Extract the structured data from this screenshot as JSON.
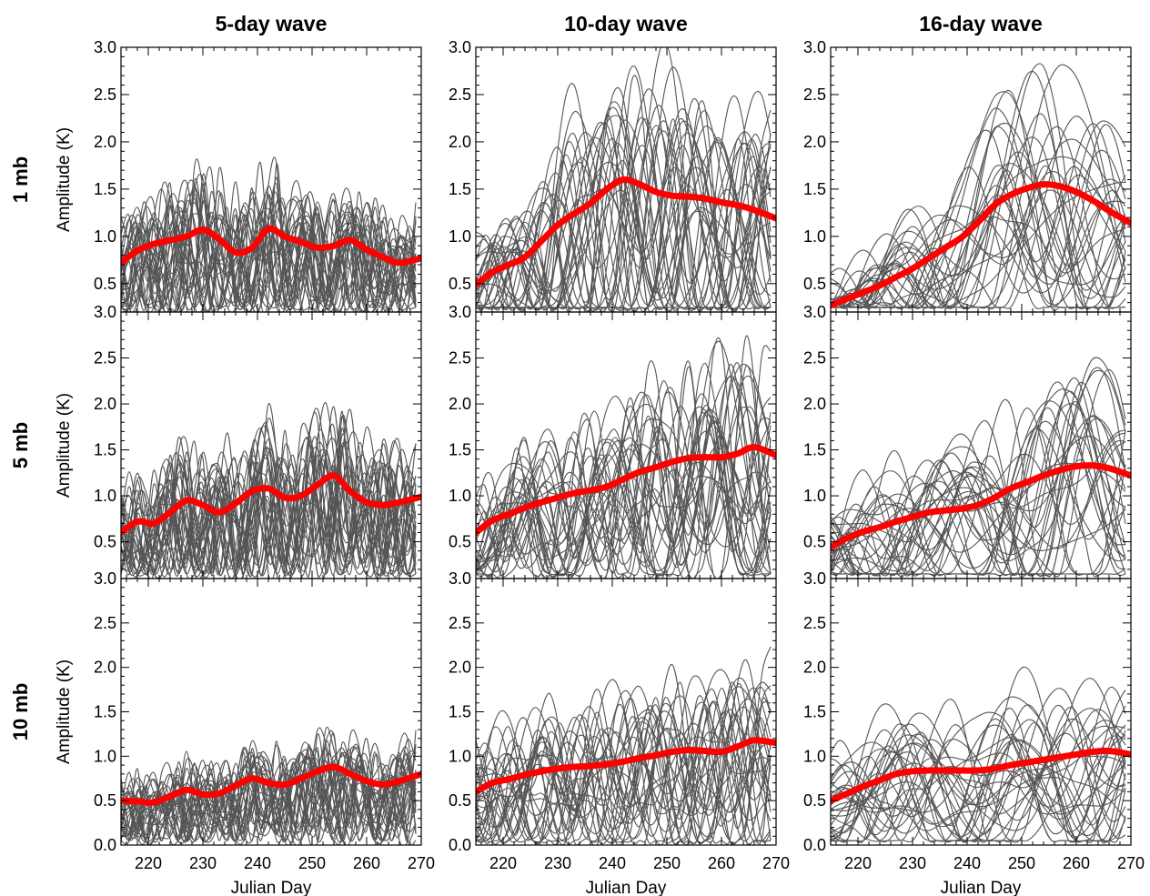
{
  "figure": {
    "column_titles": [
      "5-day wave",
      "10-day wave",
      "16-day wave"
    ],
    "row_labels": [
      "1 mb",
      "5 mb",
      "10 mb"
    ],
    "ylabel": "Amplitude (K)",
    "xlabel": "Julian Day",
    "mean_color": "#ff0000",
    "member_color": "#555555"
  },
  "chart_data": {
    "type": "line",
    "layout": "3x3 panel grid (rows: pressure level, columns: wave period)",
    "x_range": [
      215,
      270
    ],
    "x_ticks": [
      220,
      230,
      240,
      250,
      260,
      270
    ],
    "ylim": [
      0,
      3
    ],
    "y_ticks_top_row": [
      "0.5",
      "1.0",
      "1.5",
      "2.0",
      "2.5",
      "3.0"
    ],
    "y_ticks_other_rows": [
      "0.5",
      "1.0",
      "1.5",
      "2.0",
      "2.5",
      "3.0"
    ],
    "y_ticks_bottom_row": [
      "0.0",
      "0.5",
      "1.0",
      "1.5",
      "2.0",
      "2.5",
      "3.0"
    ],
    "ylim_top_row": [
      0.2,
      3.0
    ],
    "ylim_middle_row": [
      0.1,
      3.0
    ],
    "ylim_bottom_row": [
      0.0,
      3.0
    ],
    "grid": false,
    "mean_x": [
      215,
      218,
      221,
      224,
      227,
      230,
      233,
      236,
      239,
      242,
      245,
      248,
      251,
      254,
      257,
      260,
      263,
      266,
      270
    ],
    "panels": [
      {
        "row": "1 mb",
        "column": "5-day wave",
        "ensemble_members": 30,
        "mean": [
          0.72,
          0.85,
          0.92,
          0.96,
          1.0,
          1.07,
          0.97,
          0.83,
          0.88,
          1.08,
          1.0,
          0.94,
          0.88,
          0.9,
          0.96,
          0.86,
          0.78,
          0.72,
          0.77
        ]
      },
      {
        "row": "1 mb",
        "column": "10-day wave",
        "ensemble_members": 30,
        "mean": [
          0.49,
          0.62,
          0.7,
          0.78,
          0.95,
          1.12,
          1.24,
          1.35,
          1.5,
          1.6,
          1.55,
          1.47,
          1.43,
          1.42,
          1.4,
          1.36,
          1.33,
          1.28,
          1.19
        ]
      },
      {
        "row": "1 mb",
        "column": "16-day wave",
        "ensemble_members": 30,
        "mean": [
          0.27,
          0.34,
          0.41,
          0.48,
          0.57,
          0.66,
          0.77,
          0.88,
          0.99,
          1.15,
          1.33,
          1.44,
          1.51,
          1.55,
          1.53,
          1.47,
          1.38,
          1.27,
          1.14
        ]
      },
      {
        "row": "5 mb",
        "column": "5-day wave",
        "ensemble_members": 30,
        "mean": [
          0.6,
          0.72,
          0.7,
          0.82,
          0.95,
          0.9,
          0.82,
          0.92,
          1.05,
          1.08,
          0.98,
          1.0,
          1.12,
          1.22,
          1.05,
          0.93,
          0.9,
          0.93,
          0.99
        ]
      },
      {
        "row": "5 mb",
        "column": "10-day wave",
        "ensemble_members": 30,
        "mean": [
          0.6,
          0.73,
          0.8,
          0.87,
          0.93,
          0.98,
          1.03,
          1.06,
          1.1,
          1.18,
          1.26,
          1.31,
          1.37,
          1.41,
          1.42,
          1.42,
          1.46,
          1.53,
          1.44
        ]
      },
      {
        "row": "5 mb",
        "column": "16-day wave",
        "ensemble_members": 30,
        "mean": [
          0.44,
          0.54,
          0.61,
          0.66,
          0.72,
          0.77,
          0.82,
          0.84,
          0.86,
          0.9,
          0.98,
          1.08,
          1.15,
          1.22,
          1.28,
          1.32,
          1.33,
          1.3,
          1.22
        ]
      },
      {
        "row": "10 mb",
        "column": "5-day wave",
        "ensemble_members": 30,
        "mean": [
          0.5,
          0.49,
          0.48,
          0.55,
          0.62,
          0.57,
          0.58,
          0.67,
          0.75,
          0.7,
          0.68,
          0.75,
          0.83,
          0.88,
          0.8,
          0.72,
          0.68,
          0.72,
          0.8
        ]
      },
      {
        "row": "10 mb",
        "column": "10-day wave",
        "ensemble_members": 30,
        "mean": [
          0.6,
          0.7,
          0.74,
          0.79,
          0.83,
          0.86,
          0.88,
          0.89,
          0.91,
          0.94,
          0.98,
          1.01,
          1.05,
          1.07,
          1.06,
          1.05,
          1.11,
          1.18,
          1.15
        ]
      },
      {
        "row": "10 mb",
        "column": "16-day wave",
        "ensemble_members": 30,
        "mean": [
          0.5,
          0.58,
          0.66,
          0.73,
          0.8,
          0.83,
          0.84,
          0.84,
          0.84,
          0.84,
          0.86,
          0.9,
          0.93,
          0.96,
          0.99,
          1.02,
          1.05,
          1.06,
          1.02
        ]
      }
    ]
  }
}
